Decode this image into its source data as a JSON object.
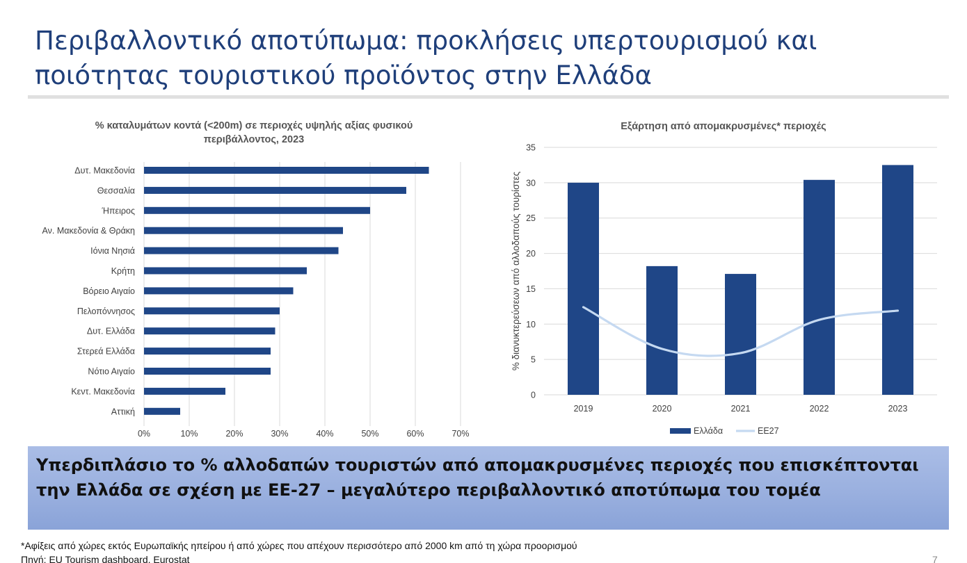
{
  "slide": {
    "title": "Περιβαλλοντικό αποτύπωμα: προκλήσεις υπερτουρισμού και ποιότητας τουριστικού προϊόντος στην Ελλάδα",
    "banner": "Υπερδιπλάσιο το % αλλοδαπών τουριστών από απομακρυσμένες περιοχές που επισκέπτονται την Ελλάδα σε σχέση με ΕΕ-27 – μεγαλύτερο περιβαλλοντικό αποτύπωμα του τομέα",
    "footnote": "*Αφίξεις από χώρες εκτός Ευρωπαϊκής ηπείρου ή από χώρες που απέχουν περισσότερο από 2000 km από τη χώρα προορισμού",
    "source": "Πηγή: EU Tourism dashboard, Eurostat",
    "page_number": "7",
    "colors": {
      "title": "#1f3f7a",
      "bar": "#1f4687",
      "line": "#c5d9f1",
      "banner": "#9ab0df"
    }
  },
  "chart_data": [
    {
      "type": "bar",
      "orientation": "horizontal",
      "title": "% καταλυμάτων κοντά (<200m) σε περιοχές υψηλής αξίας φυσικού περιβάλλοντος, 2023",
      "categories": [
        "Δυτ. Μακεδονία",
        "Θεσσαλία",
        "Ήπειρος",
        "Αν. Μακεδονία & Θράκη",
        "Ιόνια Νησιά",
        "Κρήτη",
        "Βόρειο Αιγαίο",
        "Πελοπόννησος",
        "Δυτ. Ελλάδα",
        "Στερεά Ελλάδα",
        "Νότιο Αιγαίο",
        "Κεντ. Μακεδονία",
        "Αττική"
      ],
      "values": [
        63,
        58,
        50,
        44,
        43,
        36,
        33,
        30,
        29,
        28,
        28,
        18,
        8
      ],
      "xlim": [
        0,
        70
      ],
      "xticks": [
        "0%",
        "10%",
        "20%",
        "30%",
        "40%",
        "50%",
        "60%",
        "70%"
      ],
      "grid": "vertical"
    },
    {
      "type": "bar",
      "title": "Εξάρτηση από απομακρυσμένες* περιοχές",
      "ylabel": "% διανυκτερεύσεων  από αλλοδαπούς τουρίστες",
      "categories": [
        "2019",
        "2020",
        "2021",
        "2022",
        "2023"
      ],
      "series": [
        {
          "name": "Ελλάδα",
          "type": "bar",
          "values": [
            30,
            18.2,
            17.1,
            30.4,
            32.5
          ]
        },
        {
          "name": "ΕΕ27",
          "type": "line",
          "values": [
            12.4,
            6.5,
            5.9,
            10.6,
            11.9
          ]
        }
      ],
      "ylim": [
        0,
        35
      ],
      "yticks": [
        "0",
        "5",
        "10",
        "15",
        "20",
        "25",
        "30",
        "35"
      ],
      "legend": "bottom",
      "grid": "horizontal"
    }
  ]
}
